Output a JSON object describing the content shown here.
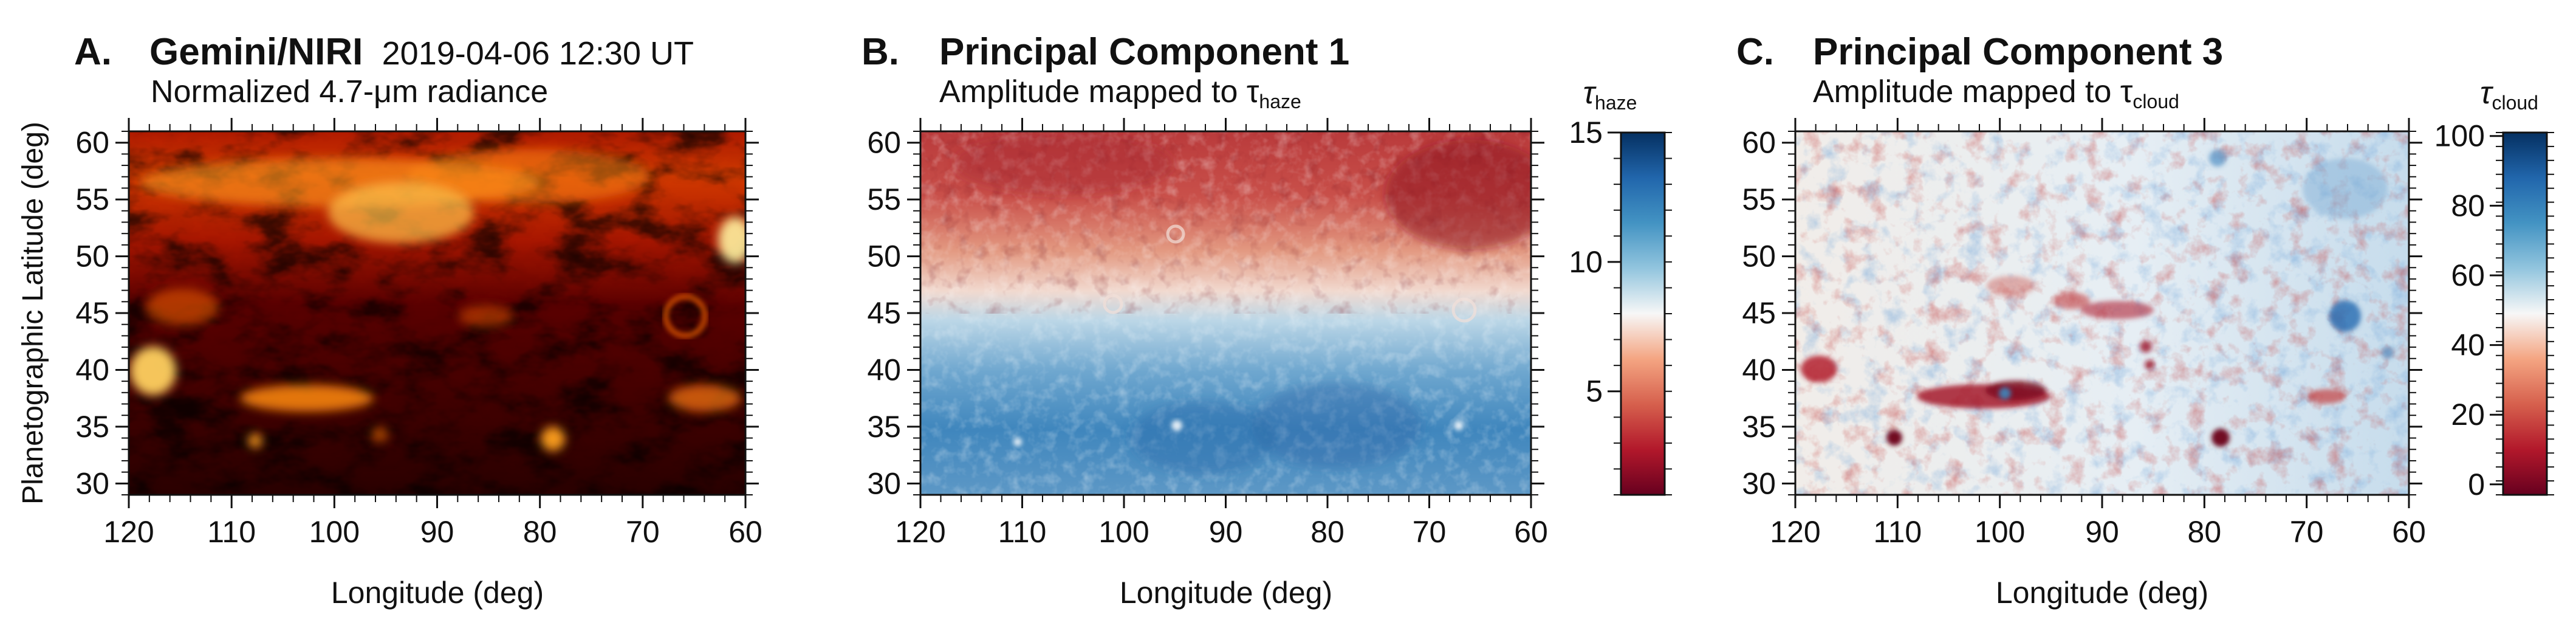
{
  "figure": {
    "shared_ylabel": "Planetographic Latitude (deg)"
  },
  "chart_data": [
    {
      "type": "heatmap",
      "panel_letter": "A.",
      "title": "Gemini/NIRI",
      "title_suffix": "2019-04-06 12:30 UT",
      "subtitle": "Normalized 4.7-μm radiance",
      "xlabel": "Longitude (deg)",
      "ylabel": "Planetographic Latitude (deg)",
      "xlim": [
        120,
        60
      ],
      "ylim": [
        29,
        61
      ],
      "xticks": [
        "120",
        "110",
        "100",
        "90",
        "80",
        "70",
        "60"
      ],
      "yticks": [
        "60",
        "55",
        "50",
        "45",
        "40",
        "35",
        "30"
      ],
      "colormap": "gist_heat",
      "colormap_colors": [
        "#1f0000",
        "#5c0000",
        "#a01200",
        "#e24a00",
        "#ff8a10",
        "#ffc84a",
        "#fff0b0"
      ],
      "features": [
        {
          "kind": "bright band",
          "lon": [
            120,
            60
          ],
          "lat": [
            50,
            58
          ],
          "value": 0.75
        },
        {
          "kind": "bright spot",
          "lon": 118,
          "lat": 40,
          "value": 0.85
        },
        {
          "kind": "bright streak",
          "lon": 102,
          "lat": 38,
          "value": 0.7
        },
        {
          "kind": "bright spot",
          "lon": 78,
          "lat": 34.5,
          "value": 0.8
        },
        {
          "kind": "bright ring",
          "lon": 66,
          "lat": 45,
          "value": 0.55
        },
        {
          "kind": "bright streak",
          "lon": 64,
          "lat": 38.5,
          "value": 0.6
        },
        {
          "kind": "bright spot",
          "lon": 61,
          "lat": 52,
          "value": 0.9
        }
      ]
    },
    {
      "type": "heatmap",
      "panel_letter": "B.",
      "title": "Principal Component 1",
      "subtitle": "Amplitude mapped to τ",
      "subtitle_sub": "haze",
      "xlabel": "Longitude (deg)",
      "ylabel": "",
      "xlim": [
        120,
        60
      ],
      "ylim": [
        29,
        61
      ],
      "xticks": [
        "120",
        "110",
        "100",
        "90",
        "80",
        "70",
        "60"
      ],
      "yticks": [
        "60",
        "55",
        "50",
        "45",
        "40",
        "35",
        "30"
      ],
      "colormap": "RdBu",
      "colormap_colors": [
        "#67001f",
        "#b2182b",
        "#d6604d",
        "#f4a582",
        "#f7f7f7",
        "#92c5de",
        "#4393c3",
        "#2166ac",
        "#053061"
      ],
      "colorbar": {
        "label": "τ",
        "label_sub": "haze",
        "range": [
          1,
          15
        ],
        "ticks": [
          "15",
          "10",
          "5"
        ],
        "tick_values": [
          15,
          10,
          5
        ]
      },
      "features": [
        {
          "kind": "low-tau red region",
          "lon": [
            120,
            60
          ],
          "lat": [
            47,
            61
          ],
          "value": 3
        },
        {
          "kind": "high-tau blue region",
          "lon": [
            120,
            60
          ],
          "lat": [
            29,
            44
          ],
          "value": 12
        }
      ]
    },
    {
      "type": "heatmap",
      "panel_letter": "C.",
      "title": "Principal Component 3",
      "subtitle": "Amplitude mapped to τ",
      "subtitle_sub": "cloud",
      "xlabel": "Longitude (deg)",
      "ylabel": "",
      "xlim": [
        120,
        60
      ],
      "ylim": [
        29,
        61
      ],
      "xticks": [
        "120",
        "110",
        "100",
        "90",
        "80",
        "70",
        "60"
      ],
      "yticks": [
        "60",
        "55",
        "50",
        "45",
        "40",
        "35",
        "30"
      ],
      "colormap": "RdBu",
      "colormap_colors": [
        "#67001f",
        "#b2182b",
        "#d6604d",
        "#f4a582",
        "#f7f7f7",
        "#92c5de",
        "#4393c3",
        "#2166ac",
        "#053061"
      ],
      "colorbar": {
        "label": "τ",
        "label_sub": "cloud",
        "range": [
          -3,
          101
        ],
        "ticks": [
          "100",
          "80",
          "60",
          "40",
          "20",
          "0"
        ],
        "tick_values": [
          100,
          80,
          60,
          40,
          20,
          0
        ]
      },
      "features": [
        {
          "kind": "dark red streak",
          "lon": 102,
          "lat": 38,
          "value": 5
        },
        {
          "kind": "dark red spot",
          "lon": 118,
          "lat": 40.5,
          "value": 8
        },
        {
          "kind": "dark red spot",
          "lon": 107.5,
          "lat": 34.5,
          "value": 2
        },
        {
          "kind": "dark red spot",
          "lon": 78,
          "lat": 34.5,
          "value": 2
        },
        {
          "kind": "blue spot",
          "lon": 68,
          "lat": 45,
          "value": 90
        },
        {
          "kind": "red cluster",
          "lon": 89,
          "lat": 45.5,
          "value": 15
        }
      ]
    }
  ]
}
